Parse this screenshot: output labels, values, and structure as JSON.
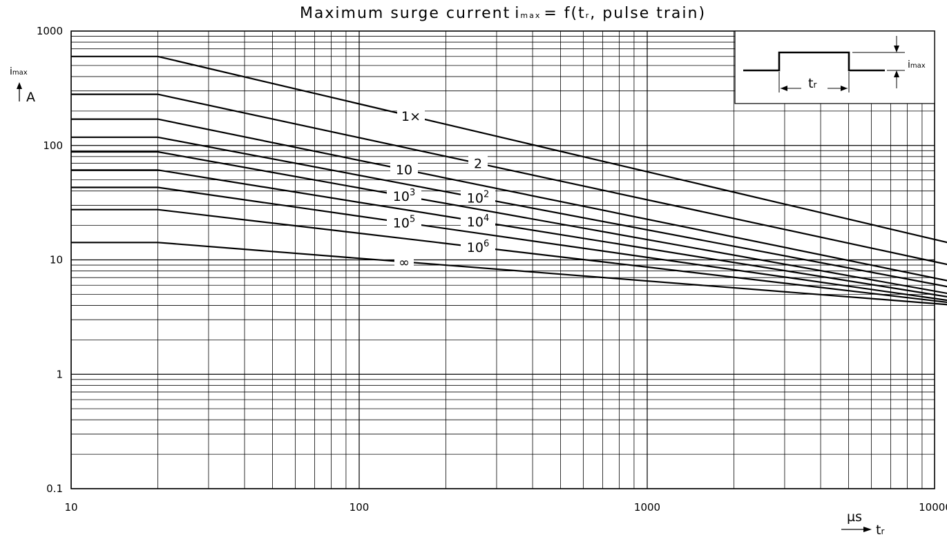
{
  "chart_data": {
    "type": "line",
    "title": {
      "prefix": "Maximum  surge  current",
      "var_main": "i",
      "var_sub": "max",
      "func": "= f(t",
      "func_sub": "r",
      "func_end": ", pulse  train)"
    },
    "x_axis": {
      "scale": "log",
      "range": [
        10,
        12000
      ],
      "tick_labels": [
        "10",
        "100",
        "1000",
        "10000"
      ],
      "tick_values": [
        10,
        100,
        1000,
        10000
      ],
      "unit": "µs",
      "label_main": "t",
      "label_sub": "r"
    },
    "y_axis": {
      "scale": "log",
      "range": [
        0.1,
        1000
      ],
      "tick_labels": [
        "1000",
        "100",
        "10",
        "1",
        "0.1"
      ],
      "tick_values": [
        1000,
        100,
        10,
        1,
        0.1
      ],
      "unit": "A",
      "label_main": "i",
      "label_sub": "max"
    },
    "grid": true,
    "series": [
      {
        "name": "1×",
        "name_base": "1×",
        "name_exp": "",
        "points": [
          [
            10,
            600
          ],
          [
            20,
            600
          ],
          [
            12000,
            13.5
          ]
        ]
      },
      {
        "name": "2",
        "name_base": "2",
        "name_exp": "",
        "points": [
          [
            10,
            280
          ],
          [
            20,
            280
          ],
          [
            12000,
            8.7
          ]
        ]
      },
      {
        "name": "10",
        "name_base": "10",
        "name_exp": "",
        "points": [
          [
            10,
            170
          ],
          [
            20,
            170
          ],
          [
            12000,
            6.3
          ]
        ]
      },
      {
        "name": "10^2",
        "name_base": "10",
        "name_exp": "2",
        "points": [
          [
            10,
            118
          ],
          [
            20,
            118
          ],
          [
            12000,
            5.6
          ]
        ]
      },
      {
        "name": "10^3",
        "name_base": "10",
        "name_exp": "3",
        "points": [
          [
            10,
            88
          ],
          [
            20,
            88
          ],
          [
            12000,
            4.9
          ]
        ]
      },
      {
        "name": "10^4",
        "name_base": "10",
        "name_exp": "4",
        "points": [
          [
            10,
            61
          ],
          [
            20,
            61
          ],
          [
            12000,
            4.6
          ]
        ]
      },
      {
        "name": "10^5",
        "name_base": "10",
        "name_exp": "5",
        "points": [
          [
            10,
            43
          ],
          [
            20,
            43
          ],
          [
            12000,
            4.3
          ]
        ]
      },
      {
        "name": "10^6",
        "name_base": "10",
        "name_exp": "6",
        "points": [
          [
            10,
            27.5
          ],
          [
            20,
            27.5
          ],
          [
            12000,
            4.15
          ]
        ]
      },
      {
        "name": "∞",
        "name_base": "∞",
        "name_exp": "",
        "points": [
          [
            10,
            14.2
          ],
          [
            20,
            14.2
          ],
          [
            12000,
            4.0
          ]
        ]
      }
    ],
    "inset": {
      "label_main": "i",
      "label_sub": "max",
      "width_main": "t",
      "width_sub": "r"
    }
  }
}
